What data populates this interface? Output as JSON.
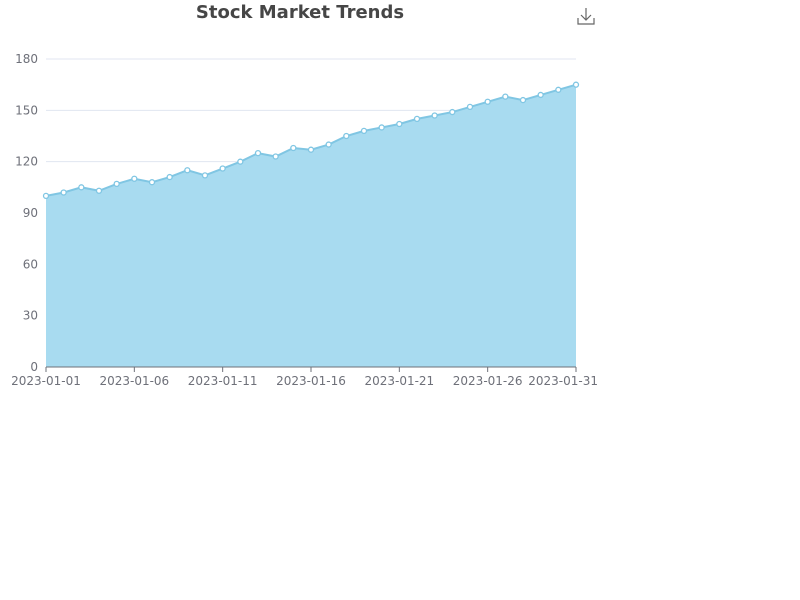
{
  "chart_data": {
    "type": "area",
    "title": "Stock Market Trends",
    "xlabel": "",
    "ylabel": "",
    "ylim": [
      0,
      180
    ],
    "y_ticks": [
      0,
      30,
      60,
      90,
      120,
      150,
      180
    ],
    "x_tick_labels": [
      "2023-01-01",
      "2023-01-06",
      "2023-01-11",
      "2023-01-16",
      "2023-01-21",
      "2023-01-26",
      "2023-01-31"
    ],
    "grid": true,
    "legend": "none",
    "x": [
      "2023-01-01",
      "2023-01-02",
      "2023-01-03",
      "2023-01-04",
      "2023-01-05",
      "2023-01-06",
      "2023-01-07",
      "2023-01-08",
      "2023-01-09",
      "2023-01-10",
      "2023-01-11",
      "2023-01-12",
      "2023-01-13",
      "2023-01-14",
      "2023-01-15",
      "2023-01-16",
      "2023-01-17",
      "2023-01-18",
      "2023-01-19",
      "2023-01-20",
      "2023-01-21",
      "2023-01-22",
      "2023-01-23",
      "2023-01-24",
      "2023-01-25",
      "2023-01-26",
      "2023-01-27",
      "2023-01-28",
      "2023-01-29",
      "2023-01-30",
      "2023-01-31"
    ],
    "series": [
      {
        "values": [
          100,
          102,
          105,
          103,
          107,
          110,
          108,
          111,
          115,
          112,
          116,
          120,
          125,
          123,
          128,
          127,
          130,
          135,
          138,
          140,
          142,
          145,
          147,
          149,
          152,
          155,
          158,
          156,
          159,
          162,
          165
        ],
        "line_color": "#80c6e3",
        "fill_color": "#a8dbf0"
      }
    ]
  },
  "toolbox": {
    "download_icon": "download-icon"
  }
}
